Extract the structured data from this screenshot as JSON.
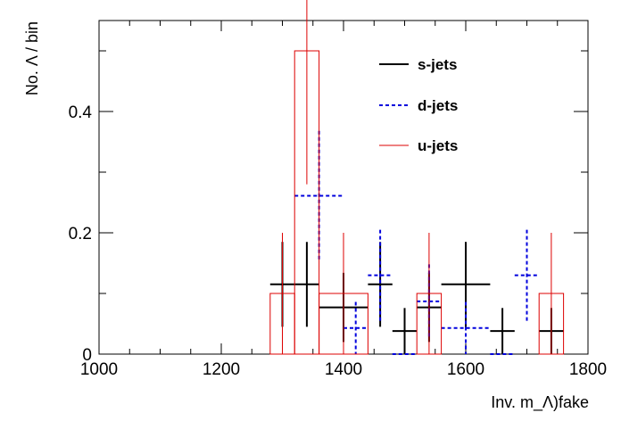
{
  "chart_data": {
    "type": "histogram",
    "xlabel": "Inv. m_Λ)fake",
    "ylabel": "No. Λ / bin",
    "xlim": [
      1000,
      1800
    ],
    "ylim": [
      0,
      0.55
    ],
    "xticks": [
      1000,
      1200,
      1400,
      1600,
      1800
    ],
    "yticks": [
      0,
      0.2,
      0.4
    ],
    "xtick_labels": [
      "1000",
      "1200",
      "1400",
      "1600",
      "1800"
    ],
    "ytick_labels": [
      "0",
      "0.2",
      "0.4"
    ],
    "grid": false,
    "legend_position": "top-right",
    "series": [
      {
        "name": "s-jets",
        "color": "#000000",
        "style": "solid",
        "bins": [
          {
            "x0": 1280,
            "x1": 1320,
            "value": 0.115,
            "err": 0.07
          },
          {
            "x0": 1320,
            "x1": 1360,
            "value": 0.115,
            "err": 0.07
          },
          {
            "x0": 1360,
            "x1": 1440,
            "value": 0.077,
            "err": 0.057
          },
          {
            "x0": 1440,
            "x1": 1480,
            "value": 0.115,
            "err": 0.07
          },
          {
            "x0": 1480,
            "x1": 1520,
            "value": 0.038,
            "err": 0.038
          },
          {
            "x0": 1520,
            "x1": 1560,
            "value": 0.077,
            "err": 0.057
          },
          {
            "x0": 1560,
            "x1": 1640,
            "value": 0.115,
            "err": 0.07
          },
          {
            "x0": 1640,
            "x1": 1680,
            "value": 0.038,
            "err": 0.038
          },
          {
            "x0": 1720,
            "x1": 1760,
            "value": 0.038,
            "err": 0.038
          }
        ]
      },
      {
        "name": "d-jets",
        "color": "#0000dd",
        "style": "dashed",
        "bins": [
          {
            "x0": 1320,
            "x1": 1400,
            "value": 0.261,
            "err": 0.107
          },
          {
            "x0": 1400,
            "x1": 1440,
            "value": 0.043,
            "err": 0.043
          },
          {
            "x0": 1440,
            "x1": 1480,
            "value": 0.13,
            "err": 0.075
          },
          {
            "x0": 1480,
            "x1": 1520,
            "value": 0.0,
            "err": 0.0
          },
          {
            "x0": 1520,
            "x1": 1560,
            "value": 0.087,
            "err": 0.061
          },
          {
            "x0": 1560,
            "x1": 1640,
            "value": 0.043,
            "err": 0.043
          },
          {
            "x0": 1640,
            "x1": 1680,
            "value": 0.0,
            "err": 0.0
          },
          {
            "x0": 1680,
            "x1": 1720,
            "value": 0.13,
            "err": 0.075
          }
        ]
      },
      {
        "name": "u-jets",
        "color": "#dd0000",
        "style": "solid",
        "bins": [
          {
            "x0": 1280,
            "x1": 1320,
            "value": 0.1,
            "err": 0.1
          },
          {
            "x0": 1320,
            "x1": 1360,
            "value": 0.5,
            "err": 0.22
          },
          {
            "x0": 1360,
            "x1": 1440,
            "value": 0.1,
            "err": 0.1
          },
          {
            "x0": 1440,
            "x1": 1520,
            "value": 0.0,
            "err": 0.0
          },
          {
            "x0": 1520,
            "x1": 1560,
            "value": 0.1,
            "err": 0.1
          },
          {
            "x0": 1560,
            "x1": 1720,
            "value": 0.0,
            "err": 0.0
          },
          {
            "x0": 1720,
            "x1": 1760,
            "value": 0.1,
            "err": 0.1
          }
        ]
      }
    ]
  }
}
